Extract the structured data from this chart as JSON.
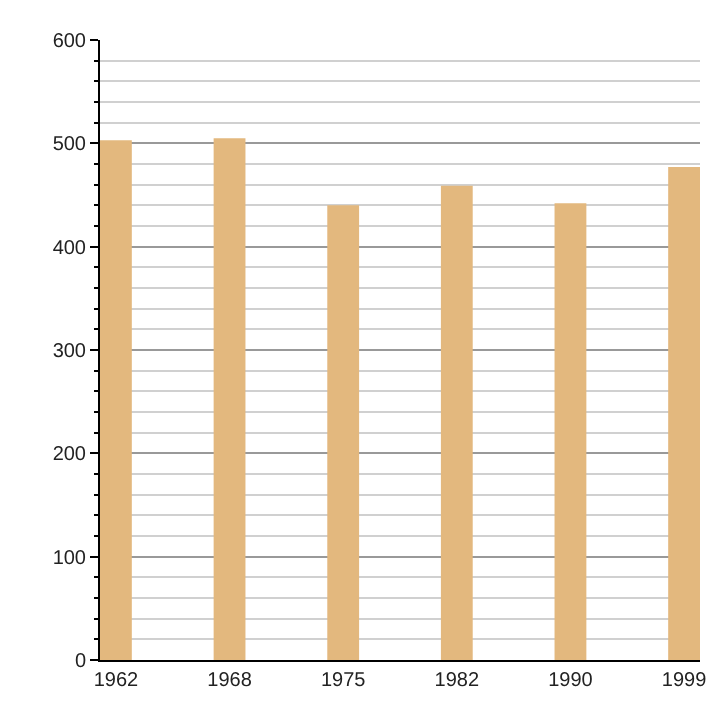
{
  "chart_data": {
    "type": "bar",
    "categories": [
      "1962",
      "1968",
      "1975",
      "1982",
      "1990",
      "1999"
    ],
    "values": [
      503,
      505,
      440,
      459,
      442,
      477
    ],
    "color": "#e3b87e",
    "ylim": [
      0,
      600
    ],
    "yticks": [
      0,
      100,
      200,
      300,
      400,
      500,
      600
    ],
    "grid": "y"
  }
}
